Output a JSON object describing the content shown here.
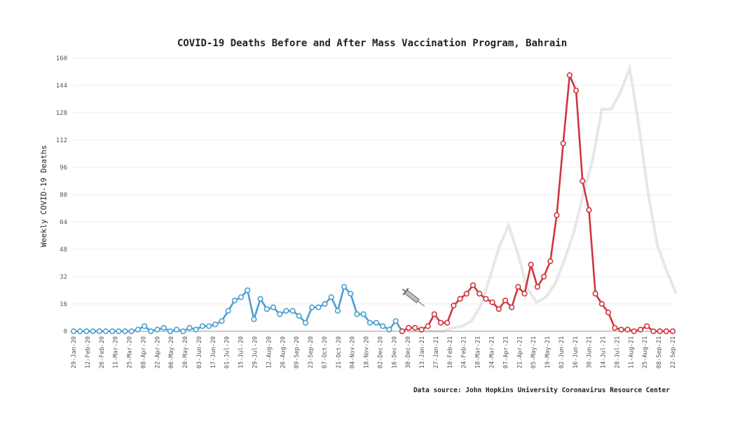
{
  "chart_data": {
    "type": "line",
    "title": "COVID-19 Deaths Before and After Mass Vaccination Program, Bahrain",
    "ylabel": "Weekly COVID-19 Deaths",
    "xlabel": "",
    "source": "Data source: John Hopkins University Coronavirus Resource Center",
    "ylim": [
      0,
      160
    ],
    "yticks": [
      "0",
      "16",
      "32",
      "48",
      "64",
      "80",
      "96",
      "112",
      "128",
      "144",
      "160"
    ],
    "ytick_values": [
      0,
      16,
      32,
      48,
      64,
      80,
      96,
      112,
      128,
      144,
      160
    ],
    "grid": true,
    "x_tick_labels": [
      "29-Jan-20",
      "12-Feb-20",
      "26-Feb-20",
      "11-Mar-20",
      "25-Mar-20",
      "08-Apr-20",
      "22-Apr-20",
      "06-May-20",
      "20-May-20",
      "03-Jun-20",
      "17-Jun-20",
      "01-Jul-20",
      "15-Jul-20",
      "29-Jul-20",
      "12-Aug-20",
      "26-Aug-20",
      "09-Sep-20",
      "23-Sep-20",
      "07-Oct-20",
      "21-Oct-20",
      "04-Nov-20",
      "18-Nov-20",
      "02-Dec-20",
      "16-Dec-20",
      "30-Dec-20",
      "13-Jan-21",
      "27-Jan-21",
      "10-Feb-21",
      "24-Feb-21",
      "10-Mar-21",
      "24-Mar-21",
      "07-Apr-21",
      "21-Apr-21",
      "05-May-21",
      "19-May-21",
      "02-Jun-21",
      "16-Jun-21",
      "30-Jun-21",
      "14-Jul-21",
      "28-Jul-21",
      "11-Aug-21",
      "25-Aug-21",
      "08-Sep-21",
      "22-Sep-21"
    ],
    "series": [
      {
        "color": "#4a9fd0",
        "values": [
          0,
          0,
          0,
          0,
          0,
          0,
          0,
          0,
          0,
          0,
          1,
          3,
          0,
          1,
          2,
          0,
          1,
          0,
          2,
          1,
          3,
          3,
          4,
          6,
          12,
          18,
          20,
          24,
          7,
          19,
          13,
          14,
          10,
          12,
          12,
          9,
          5,
          14,
          14,
          16,
          20,
          12,
          26,
          22,
          10,
          10,
          5,
          5,
          3,
          1,
          6,
          0
        ]
      },
      {
        "color": "#d0353d",
        "values": [
          0,
          2,
          2,
          1,
          3,
          10,
          5,
          5,
          15,
          19,
          22,
          27,
          22,
          19,
          17,
          13,
          18,
          14,
          26,
          22,
          39,
          26,
          32,
          41,
          68,
          110,
          150,
          141,
          88,
          71,
          22,
          16,
          11,
          2,
          1,
          1,
          0,
          1,
          3,
          0,
          0,
          0,
          0
        ]
      }
    ],
    "ghost_color": "#dddddd",
    "ghost_values": [
      0,
      0,
      0,
      0,
      0,
      2,
      3,
      6,
      15,
      32,
      50,
      62,
      45,
      25,
      17,
      20,
      28,
      42,
      58,
      80,
      100,
      130,
      130,
      140,
      154,
      120,
      80,
      50,
      35,
      22
    ]
  }
}
